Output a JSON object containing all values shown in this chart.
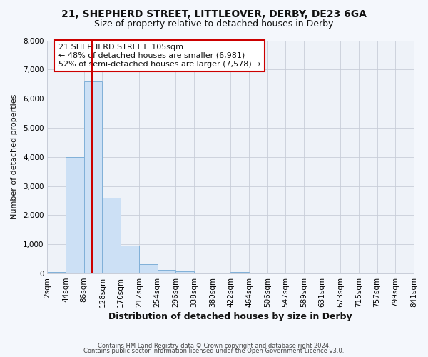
{
  "title": "21, SHEPHERD STREET, LITTLEOVER, DERBY, DE23 6GA",
  "subtitle": "Size of property relative to detached houses in Derby",
  "xlabel": "Distribution of detached houses by size in Derby",
  "ylabel": "Number of detached properties",
  "bar_color": "#cce0f5",
  "bar_edge_color": "#80b0d8",
  "bin_edges": [
    2,
    44,
    86,
    128,
    170,
    212,
    254,
    296,
    338,
    380,
    422,
    464,
    506,
    547,
    589,
    631,
    673,
    715,
    757,
    799,
    841
  ],
  "bin_labels": [
    "2sqm",
    "44sqm",
    "86sqm",
    "128sqm",
    "170sqm",
    "212sqm",
    "254sqm",
    "296sqm",
    "338sqm",
    "380sqm",
    "422sqm",
    "464sqm",
    "506sqm",
    "547sqm",
    "589sqm",
    "631sqm",
    "673sqm",
    "715sqm",
    "757sqm",
    "799sqm",
    "841sqm"
  ],
  "counts": [
    50,
    4000,
    6600,
    2600,
    950,
    330,
    130,
    80,
    0,
    0,
    60,
    0,
    0,
    0,
    0,
    0,
    0,
    0,
    0,
    0
  ],
  "red_line_x": 105,
  "annotation_title": "21 SHEPHERD STREET: 105sqm",
  "annotation_line1": "← 48% of detached houses are smaller (6,981)",
  "annotation_line2": "52% of semi-detached houses are larger (7,578) →",
  "ylim": [
    0,
    8000
  ],
  "yticks": [
    0,
    1000,
    2000,
    3000,
    4000,
    5000,
    6000,
    7000,
    8000
  ],
  "footer1": "Contains HM Land Registry data © Crown copyright and database right 2024.",
  "footer2": "Contains public sector information licensed under the Open Government Licence v3.0.",
  "bg_color": "#f4f7fc",
  "plot_bg_color": "#eef2f8",
  "grid_color": "#c8cdd8",
  "title_color": "#111111",
  "annotation_box_color": "#ffffff",
  "annotation_box_edge": "#cc0000",
  "red_line_color": "#cc0000"
}
